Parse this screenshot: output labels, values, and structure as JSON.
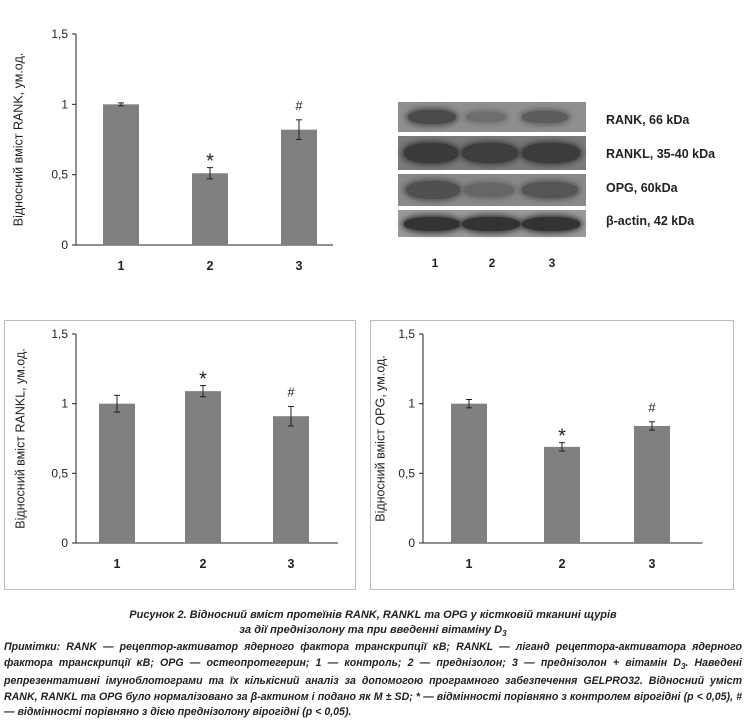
{
  "chart_data": [
    {
      "type": "bar",
      "ylabel": "Відносний вміст RANK, ум.од.",
      "categories": [
        "1",
        "2",
        "3"
      ],
      "values": [
        1.0,
        0.51,
        0.82
      ],
      "errors": [
        0.01,
        0.04,
        0.07
      ],
      "markers": [
        "",
        "*",
        "#"
      ],
      "yticks": [
        "0",
        "0,5",
        "1",
        "1,5"
      ],
      "ylim": [
        0,
        1.5
      ],
      "bordered": false
    },
    {
      "type": "bar",
      "ylabel": "Відносний вміст RANKL, ум.од.",
      "categories": [
        "1",
        "2",
        "3"
      ],
      "values": [
        1.0,
        1.09,
        0.91
      ],
      "errors": [
        0.06,
        0.04,
        0.07
      ],
      "markers": [
        "",
        "*",
        "#"
      ],
      "yticks": [
        "0",
        "0,5",
        "1",
        "1,5"
      ],
      "ylim": [
        0,
        1.5
      ],
      "bordered": true
    },
    {
      "type": "bar",
      "ylabel": "Відносний вміст OPG, ум.од.",
      "categories": [
        "1",
        "2",
        "3"
      ],
      "values": [
        1.0,
        0.69,
        0.84
      ],
      "errors": [
        0.03,
        0.03,
        0.03
      ],
      "markers": [
        "",
        "*",
        "#"
      ],
      "yticks": [
        "0",
        "0,5",
        "1",
        "1,5"
      ],
      "ylim": [
        0,
        1.5
      ],
      "bordered": true
    }
  ],
  "blot": {
    "labels": [
      "RANK, 66 kDa",
      "RANKL, 35-40 kDa",
      "OPG, 60kDa",
      "β-actin, 42 kDa"
    ],
    "lanes": [
      "1",
      "2",
      "3"
    ]
  },
  "caption": {
    "line1": "Рисунок 2. Відносний вміст протеїнів RANK, RANKL та OPG у кістковій тканині щурів",
    "line2_main": "за дії преднізолону та при введенні вітаміну D",
    "line2_sub": "3"
  },
  "notes": {
    "part1": "Примітки: RANK — рецептор-активатор ядерного фактора транскрипції κB; RANKL — ліганд рецептора-активатора ядерного фактора транскрипції κB; OPG — остеопротегерин; 1 — контроль; 2 — преднізолон; 3 — преднізолон + вітамін D",
    "sub": "3",
    "part2": ". Наведені репрезентативні імуноблотограми та їх кількісний аналіз за допомогою програмного забезпечення GELPRO32. Відносний уміст RANK, RANKL та OPG було нормалізовано за β-актином і подано як M ± SD; * — відмінності порівняно з контролем вірогідні (p < 0,05), # — відмінності порівняно з дією преднізолону вірогідні (p < 0,05)."
  }
}
